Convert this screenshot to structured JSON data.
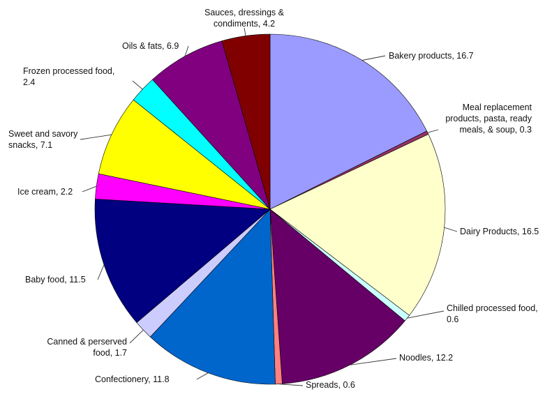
{
  "chart_data": {
    "type": "pie",
    "title": "",
    "start_angle_deg": 0,
    "direction": "clockwise",
    "slices": [
      {
        "label": "Bakery products, 16.7",
        "category": "Bakery products",
        "value": 16.7,
        "color": "#9b9bff"
      },
      {
        "label": "Meal replacement products, pasta, ready meals, & soup, 0.3",
        "category": "Meal replacement products, pasta, ready meals, & soup",
        "value": 0.3,
        "color": "#993366"
      },
      {
        "label": "Dairy Products, 16.5",
        "category": "Dairy Products",
        "value": 16.5,
        "color": "#ffffcc"
      },
      {
        "label": "Chilled processed food, 0.6",
        "category": "Chilled processed food",
        "value": 0.6,
        "color": "#ccffff"
      },
      {
        "label": "Noodles, 12.2",
        "category": "Noodles",
        "value": 12.2,
        "color": "#660066"
      },
      {
        "label": "Spreads, 0.6",
        "category": "Spreads",
        "value": 0.6,
        "color": "#ff8080"
      },
      {
        "label": "Confectionery, 11.8",
        "category": "Confectionery",
        "value": 11.8,
        "color": "#0066cc"
      },
      {
        "label": "Canned & perserved food, 1.7",
        "category": "Canned & perserved food",
        "value": 1.7,
        "color": "#ccccff"
      },
      {
        "label": "Baby food, 11.5",
        "category": "Baby food",
        "value": 11.5,
        "color": "#000080"
      },
      {
        "label": "Ice cream, 2.2",
        "category": "Ice cream",
        "value": 2.2,
        "color": "#ff00ff"
      },
      {
        "label": "Sweet and savory snacks, 7.1",
        "category": "Sweet and savory snacks",
        "value": 7.1,
        "color": "#ffff00"
      },
      {
        "label": "Frozen processed food, 2.4",
        "category": "Frozen processed food",
        "value": 2.4,
        "color": "#00ffff"
      },
      {
        "label": "Oils & fats, 6.9",
        "category": "Oils & fats",
        "value": 6.9,
        "color": "#800080"
      },
      {
        "label": "Sauces, dressings & condiments, 4.2",
        "category": "Sauces, dressings & condiments",
        "value": 4.2,
        "color": "#800000"
      }
    ],
    "label_lines": [
      [
        "Bakery products, 16.7"
      ],
      [
        "Meal replacement",
        "products, pasta, ready",
        "meals, & soup, 0.3"
      ],
      [
        "Dairy Products, 16.5"
      ],
      [
        "Chilled processed food,",
        "0.6"
      ],
      [
        "Noodles, 12.2"
      ],
      [
        "Spreads, 0.6"
      ],
      [
        "Confectionery, 11.8"
      ],
      [
        "Canned & perserved",
        "food, 1.7"
      ],
      [
        "Baby food, 11.5"
      ],
      [
        "Ice cream, 2.2"
      ],
      [
        "Sweet and savory",
        "snacks, 7.1"
      ],
      [
        "Frozen processed food,",
        "2.4"
      ],
      [
        "Oils & fats, 6.9"
      ],
      [
        "Sauces, dressings &",
        "condiments, 4.2"
      ]
    ],
    "legend": "none"
  }
}
